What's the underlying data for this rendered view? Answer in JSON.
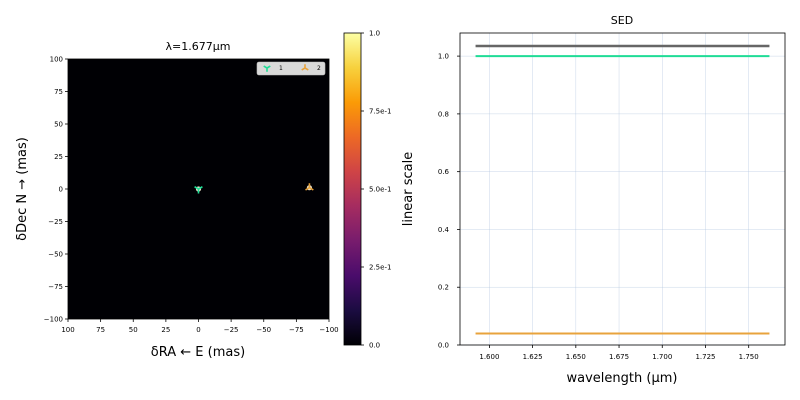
{
  "image_panel": {
    "title": "λ=1.677μm",
    "xlabel": "δRA ← E (mas)",
    "ylabel": "δDec N → (mas)",
    "xticks": [
      "100",
      "75",
      "50",
      "25",
      "0",
      "−25",
      "−50",
      "−75",
      "−100"
    ],
    "yticks": [
      "100",
      "75",
      "50",
      "25",
      "0",
      "−25",
      "−50",
      "−75",
      "−100"
    ],
    "legend": [
      "1",
      "2"
    ],
    "background_color": "#000004"
  },
  "colorbar": {
    "label": "linear scale",
    "ticks": [
      "1.0",
      "7.5e-1",
      "5.0e-1",
      "2.5e-1",
      "0.0"
    ],
    "colors": [
      "#000004",
      "#1b0c41",
      "#4a0c6b",
      "#781c6d",
      "#a52c60",
      "#cf4446",
      "#ed6925",
      "#fb9b06",
      "#f7d13d",
      "#fcffa4"
    ]
  },
  "sed_panel": {
    "title": "SED",
    "xlabel": "wavelength (μm)",
    "xticks": [
      "1.600",
      "1.625",
      "1.650",
      "1.675",
      "1.700",
      "1.725",
      "1.750"
    ],
    "yticks": [
      "0.0",
      "0.2",
      "0.4",
      "0.6",
      "0.8",
      "1.0"
    ],
    "series_colors": [
      "#666666",
      "#1fdc96",
      "#e8a33c"
    ]
  },
  "chart_data": [
    {
      "type": "scatter",
      "title": "λ=1.677μm",
      "xlabel": "δRA ← E (mas)",
      "ylabel": "δDec N → (mas)",
      "xlim": [
        100,
        -100
      ],
      "ylim": [
        -100,
        100
      ],
      "grid": false,
      "legend_position": "top-right",
      "series": [
        {
          "name": "1",
          "x": [
            0
          ],
          "y": [
            0
          ],
          "color": "#1fdc96"
        },
        {
          "name": "2",
          "x": [
            -85
          ],
          "y": [
            1
          ],
          "color": "#e8a33c"
        }
      ]
    },
    {
      "type": "line",
      "title": "SED",
      "xlabel": "wavelength (μm)",
      "ylabel": "",
      "xlim": [
        1.583,
        1.771
      ],
      "ylim": [
        0,
        1.08
      ],
      "grid": true,
      "series": [
        {
          "x": [
            1.592,
            1.762
          ],
          "values": [
            1.035,
            1.035
          ],
          "color": "#666666"
        },
        {
          "x": [
            1.592,
            1.762
          ],
          "values": [
            1.0,
            1.0
          ],
          "color": "#1fdc96"
        },
        {
          "x": [
            1.592,
            1.762
          ],
          "values": [
            0.04,
            0.04
          ],
          "color": "#e8a33c"
        }
      ]
    }
  ]
}
